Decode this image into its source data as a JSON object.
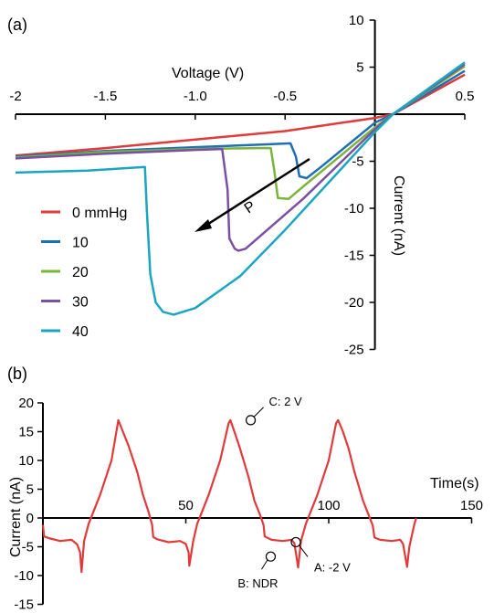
{
  "panels": {
    "a": "(a)",
    "b": "(b)"
  },
  "chart_data": [
    {
      "type": "line",
      "xlabel": "Voltage (V)",
      "ylabel": "Current (nA)",
      "xlim": [
        -2,
        0.5
      ],
      "ylim": [
        -25,
        10
      ],
      "xticks": [
        "-2",
        "-1.5",
        "-1.0",
        "-0.5",
        "0.5"
      ],
      "yticks": [
        "10",
        "5",
        "-5",
        "-10",
        "-15",
        "-20",
        "-25"
      ],
      "legend_position": "left",
      "annotation": "P",
      "colors": [
        "#e03a3a",
        "#1f6fb5",
        "#7ab43a",
        "#7b4fa3",
        "#1aa6c0"
      ],
      "series": [
        {
          "name": "0 mmHg",
          "points": [
            [
              -2,
              -4.4
            ],
            [
              -1.5,
              -3.6
            ],
            [
              -1.0,
              -2.7
            ],
            [
              -0.5,
              -1.8
            ],
            [
              0,
              -0.4
            ],
            [
              0.1,
              0
            ],
            [
              0.5,
              4.2
            ]
          ]
        },
        {
          "name": "10",
          "points": [
            [
              -2,
              -4.5
            ],
            [
              -1.5,
              -3.9
            ],
            [
              -1.0,
              -3.5
            ],
            [
              -0.6,
              -3.2
            ],
            [
              -0.47,
              -3.1
            ],
            [
              -0.44,
              -4.5
            ],
            [
              -0.42,
              -6.6
            ],
            [
              -0.38,
              -6.8
            ],
            [
              -0.3,
              -5.6
            ],
            [
              0,
              -0.9
            ],
            [
              0.1,
              0
            ],
            [
              0.5,
              4.6
            ]
          ]
        },
        {
          "name": "20",
          "points": [
            [
              -2,
              -4.6
            ],
            [
              -1.5,
              -4.0
            ],
            [
              -1.0,
              -3.7
            ],
            [
              -0.65,
              -3.6
            ],
            [
              -0.58,
              -3.6
            ],
            [
              -0.56,
              -6
            ],
            [
              -0.54,
              -8.9
            ],
            [
              -0.48,
              -9.0
            ],
            [
              -0.4,
              -7.7
            ],
            [
              0,
              -1.4
            ],
            [
              0.1,
              0
            ],
            [
              0.5,
              5.1
            ]
          ]
        },
        {
          "name": "30",
          "points": [
            [
              -2,
              -4.7
            ],
            [
              -1.5,
              -4.2
            ],
            [
              -1.0,
              -3.8
            ],
            [
              -0.85,
              -3.7
            ],
            [
              -0.82,
              -8
            ],
            [
              -0.81,
              -13.2
            ],
            [
              -0.78,
              -14.3
            ],
            [
              -0.76,
              -14.5
            ],
            [
              -0.72,
              -14.3
            ],
            [
              -0.4,
              -9.0
            ],
            [
              0,
              -1.6
            ],
            [
              0.1,
              0
            ],
            [
              0.5,
              5.3
            ]
          ]
        },
        {
          "name": "40",
          "points": [
            [
              -2,
              -6.2
            ],
            [
              -1.6,
              -6.0
            ],
            [
              -1.28,
              -5.6
            ],
            [
              -1.27,
              -10
            ],
            [
              -1.25,
              -17
            ],
            [
              -1.22,
              -20
            ],
            [
              -1.18,
              -21.0
            ],
            [
              -1.12,
              -21.3
            ],
            [
              -1.0,
              -20.6
            ],
            [
              -0.75,
              -17.2
            ],
            [
              -0.5,
              -12.3
            ],
            [
              0,
              -1.9
            ],
            [
              0.1,
              0
            ],
            [
              0.5,
              5.5
            ]
          ]
        }
      ]
    },
    {
      "type": "line",
      "xlabel": "Time(s)",
      "ylabel": "Current (nA)",
      "xlim": [
        0,
        150
      ],
      "ylim": [
        -15,
        20
      ],
      "xticks": [
        "50",
        "100",
        "150"
      ],
      "yticks": [
        "20",
        "15",
        "10",
        "5",
        "0",
        "-5",
        "-10",
        "-15"
      ],
      "color": "#e03a3a",
      "annotations": [
        {
          "label": "C: 2 V",
          "x": 72.7,
          "y": 17
        },
        {
          "label": "B: NDR",
          "x": 79.7,
          "y": -6.7
        },
        {
          "label": "A: -2 V",
          "x": 88.5,
          "y": -4.2
        }
      ],
      "series": [
        {
          "name": "",
          "points": [
            [
              0,
              -1.2
            ],
            [
              0.4,
              -3.2
            ],
            [
              2,
              -3.5
            ],
            [
              6,
              -4.0
            ],
            [
              10,
              -3.8
            ],
            [
              12,
              -4.6
            ],
            [
              13,
              -6
            ],
            [
              13.5,
              -9.4
            ],
            [
              14.4,
              -4
            ],
            [
              16,
              -1
            ],
            [
              20,
              4
            ],
            [
              24,
              10
            ],
            [
              26.4,
              17
            ],
            [
              28,
              15
            ],
            [
              30,
              12.5
            ],
            [
              33,
              8
            ],
            [
              35,
              4
            ],
            [
              37,
              1
            ],
            [
              38.2,
              -1.2
            ],
            [
              38.6,
              -3.3
            ],
            [
              40,
              -3.7
            ],
            [
              44,
              -4.2
            ],
            [
              48,
              -4.0
            ],
            [
              50,
              -4.5
            ],
            [
              51,
              -6
            ],
            [
              51.2,
              -8.3
            ],
            [
              52.6,
              -4
            ],
            [
              54,
              -1
            ],
            [
              58,
              4
            ],
            [
              62,
              10
            ],
            [
              65,
              16.5
            ],
            [
              65.6,
              17
            ],
            [
              67,
              15
            ],
            [
              69,
              12
            ],
            [
              72,
              7
            ],
            [
              74,
              3
            ],
            [
              76,
              0.5
            ],
            [
              77.2,
              -1.2
            ],
            [
              77.6,
              -3.2
            ],
            [
              80,
              -3.8
            ],
            [
              84,
              -4.0
            ],
            [
              87,
              -3.8
            ],
            [
              88,
              -4.4
            ],
            [
              89.3,
              -8.6
            ],
            [
              90.3,
              -4
            ],
            [
              92,
              -1
            ],
            [
              96,
              4
            ],
            [
              100,
              10
            ],
            [
              102.6,
              16.5
            ],
            [
              103.3,
              17
            ],
            [
              105,
              15
            ],
            [
              107,
              12
            ],
            [
              109,
              8
            ],
            [
              112,
              3
            ],
            [
              114,
              0.5
            ],
            [
              115.4,
              -1.3
            ],
            [
              116,
              -3.4
            ],
            [
              118,
              -3.8
            ],
            [
              122,
              -4.0
            ],
            [
              125,
              -3.8
            ],
            [
              126,
              -4.5
            ],
            [
              127.4,
              -8.5
            ],
            [
              128.2,
              -5
            ],
            [
              130,
              -1
            ],
            [
              130.6,
              0
            ]
          ]
        }
      ]
    }
  ]
}
